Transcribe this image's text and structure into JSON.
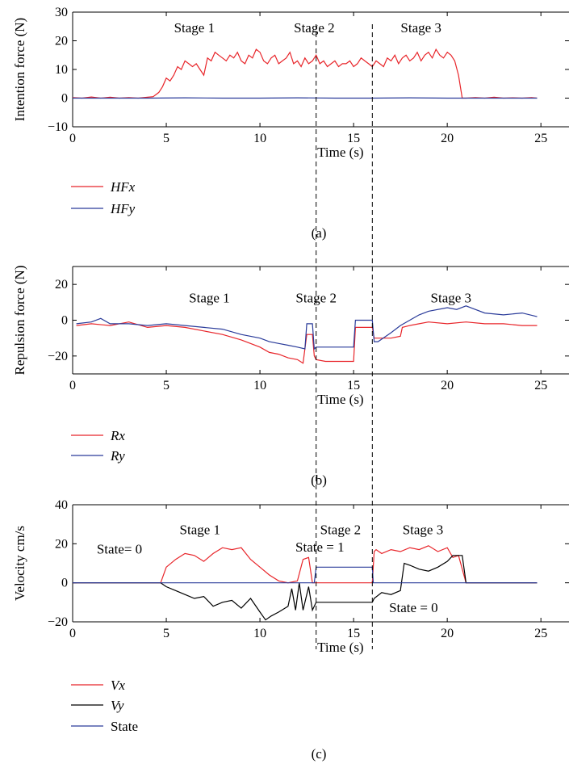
{
  "chart_data": [
    {
      "type": "line",
      "panel": "(a)",
      "xlabel": "Time (s)",
      "ylabel": "Intention force (N)",
      "xlim": [
        0,
        26.5
      ],
      "ylim": [
        -10,
        30
      ],
      "xticks": [
        0,
        5,
        10,
        15,
        20,
        25
      ],
      "yticks": [
        -10,
        0,
        10,
        20,
        30
      ],
      "annotations": [
        {
          "text": "Stage 1",
          "x": 6.5,
          "y": 23
        },
        {
          "text": "Stage 2",
          "x": 12.9,
          "y": 23
        },
        {
          "text": "Stage 3",
          "x": 18.6,
          "y": 23
        }
      ],
      "series": [
        {
          "name": "HFx",
          "color": "#e8252a",
          "x": [
            0,
            0.5,
            1,
            1.5,
            2,
            2.5,
            3,
            3.5,
            4,
            4.3,
            4.6,
            4.8,
            5,
            5.2,
            5.4,
            5.6,
            5.8,
            6,
            6.2,
            6.4,
            6.6,
            6.8,
            7,
            7.2,
            7.4,
            7.6,
            7.8,
            8,
            8.2,
            8.4,
            8.6,
            8.8,
            9,
            9.2,
            9.4,
            9.6,
            9.8,
            10,
            10.2,
            10.4,
            10.6,
            10.8,
            11,
            11.2,
            11.4,
            11.6,
            11.8,
            12,
            12.2,
            12.4,
            12.6,
            12.8,
            13,
            13.2,
            13.4,
            13.6,
            13.8,
            14,
            14.2,
            14.4,
            14.6,
            14.8,
            15,
            15.2,
            15.4,
            15.6,
            15.8,
            16,
            16.2,
            16.4,
            16.6,
            16.8,
            17,
            17.2,
            17.4,
            17.6,
            17.8,
            18,
            18.2,
            18.4,
            18.6,
            18.8,
            19,
            19.2,
            19.4,
            19.6,
            19.8,
            20,
            20.2,
            20.4,
            20.6,
            20.8,
            21,
            21.5,
            22,
            22.5,
            23,
            23.5,
            24,
            24.5,
            24.8
          ],
          "y": [
            0.2,
            0,
            0.4,
            0,
            0.3,
            0,
            0.2,
            0,
            0.3,
            0.5,
            2,
            4,
            7,
            6,
            8,
            11,
            10,
            13,
            12,
            11,
            12,
            10,
            8,
            14,
            13,
            16,
            15,
            14,
            13,
            15,
            14,
            16,
            13,
            12,
            15,
            14,
            17,
            16,
            13,
            12,
            14,
            15,
            12,
            13,
            14,
            16,
            12,
            13,
            11,
            14,
            12,
            13,
            15,
            12,
            13,
            11,
            12,
            13,
            11,
            12,
            12,
            13,
            11,
            12,
            14,
            13,
            12,
            11,
            13,
            12,
            11,
            14,
            13,
            15,
            12,
            14,
            15,
            13,
            14,
            16,
            13,
            15,
            16,
            14,
            17,
            15,
            14,
            16,
            15,
            13,
            8,
            0,
            0,
            0.2,
            0,
            0.3,
            0,
            0.1,
            0,
            0.2,
            0
          ]
        },
        {
          "name": "HFy",
          "color": "#2a3b9a",
          "x": [
            0,
            2,
            4,
            6,
            8,
            10,
            12,
            14,
            16,
            18,
            20,
            22,
            24,
            24.8
          ],
          "y": [
            0,
            0,
            0,
            0.1,
            0,
            0,
            0.1,
            0,
            0,
            0.1,
            0,
            0,
            0,
            0
          ]
        }
      ],
      "vlines": [
        13.0,
        16.0
      ]
    },
    {
      "type": "line",
      "panel": "(b)",
      "xlabel": "Time (s)",
      "ylabel": "Repulsion force (N)",
      "xlim": [
        0,
        26.5
      ],
      "ylim": [
        -30,
        30
      ],
      "xticks": [
        0,
        5,
        10,
        15,
        20,
        25
      ],
      "yticks": [
        -20,
        0,
        20
      ],
      "annotations": [
        {
          "text": "Stage 1",
          "x": 7.3,
          "y": 10
        },
        {
          "text": "Stage 2",
          "x": 13.0,
          "y": 10
        },
        {
          "text": "Stage 3",
          "x": 20.2,
          "y": 10
        }
      ],
      "series": [
        {
          "name": "Rx",
          "color": "#e8252a",
          "x": [
            0.2,
            1,
            2,
            3,
            4,
            5,
            6,
            7,
            8,
            9,
            10,
            10.5,
            11,
            11.5,
            12,
            12.3,
            12.5,
            12.6,
            12.8,
            12.9,
            13,
            13.5,
            14,
            15,
            15.1,
            15.2,
            16,
            16.1,
            16.3,
            17,
            17.5,
            17.6,
            18,
            18.5,
            19,
            20,
            21,
            22,
            23,
            24,
            24.8
          ],
          "y": [
            -3,
            -2,
            -3,
            -1,
            -4,
            -3,
            -4,
            -6,
            -8,
            -11,
            -15,
            -18,
            -19,
            -21,
            -22,
            -24,
            -8,
            -8,
            -8,
            -20,
            -22,
            -23,
            -23,
            -23,
            -4,
            -4,
            -4,
            -10,
            -10,
            -10,
            -9,
            -4,
            -3,
            -2,
            -1,
            -2,
            -1,
            -2,
            -2,
            -3,
            -3
          ]
        },
        {
          "name": "Ry",
          "color": "#2a3b9a",
          "x": [
            0.2,
            1,
            1.5,
            2,
            3,
            4,
            5,
            6,
            7,
            8,
            9,
            10,
            10.5,
            11,
            11.5,
            12,
            12.4,
            12.5,
            12.8,
            12.9,
            13,
            13.5,
            14,
            15,
            15.1,
            15.2,
            16,
            16.1,
            16.3,
            17,
            17.5,
            18,
            18.5,
            19,
            20,
            20.5,
            21,
            22,
            23,
            24,
            24.8
          ],
          "y": [
            -2,
            -1,
            1,
            -2,
            -2,
            -3,
            -2,
            -3,
            -4,
            -5,
            -8,
            -10,
            -12,
            -13,
            -14,
            -15,
            -16,
            -2,
            -2,
            -16,
            -15,
            -15,
            -15,
            -15,
            0,
            0,
            0,
            -12,
            -12,
            -7,
            -3,
            0,
            3,
            5,
            7,
            6,
            8,
            4,
            3,
            4,
            2
          ]
        }
      ],
      "vlines": [
        13.0,
        16.0
      ]
    },
    {
      "type": "line",
      "panel": "(c)",
      "xlabel": "Time (s)",
      "ylabel": "Velocity cm/s",
      "xlim": [
        0,
        26.5
      ],
      "ylim": [
        -20,
        40
      ],
      "xticks": [
        0,
        5,
        10,
        15,
        20,
        25
      ],
      "yticks": [
        -20,
        0,
        20,
        40
      ],
      "annotations": [
        {
          "text": "Stage 1",
          "x": 6.8,
          "y": 25
        },
        {
          "text": "Stage 2",
          "x": 14.3,
          "y": 25
        },
        {
          "text": "Stage 3",
          "x": 18.7,
          "y": 25
        },
        {
          "text": "State= 0",
          "x": 2.5,
          "y": 15
        },
        {
          "text": "State = 1",
          "x": 13.2,
          "y": 16
        },
        {
          "text": "State = 0",
          "x": 18.2,
          "y": -15
        }
      ],
      "series": [
        {
          "name": "Vx",
          "color": "#e8252a",
          "x": [
            0,
            4.7,
            5,
            5.5,
            6,
            6.5,
            7,
            7.5,
            8,
            8.5,
            9,
            9.5,
            10,
            10.5,
            11,
            11.5,
            12,
            12.3,
            12.6,
            12.8,
            13,
            14,
            15,
            16,
            16.1,
            16.2,
            16.5,
            17,
            17.5,
            18,
            18.5,
            19,
            19.5,
            20,
            20.3,
            20.6,
            21,
            21.5,
            22,
            23,
            24,
            24.8
          ],
          "y": [
            0,
            0,
            8,
            12,
            15,
            14,
            11,
            15,
            18,
            17,
            18,
            12,
            8,
            4,
            1,
            0,
            1,
            12,
            13,
            0,
            0,
            0,
            0,
            0,
            16,
            17,
            15,
            17,
            16,
            18,
            17,
            19,
            16,
            18,
            13,
            14,
            0,
            0,
            0,
            0,
            0,
            0
          ]
        },
        {
          "name": "Vy",
          "color": "#000000",
          "x": [
            0,
            4.7,
            5,
            5.5,
            6,
            6.5,
            7,
            7.5,
            8,
            8.5,
            9,
            9.5,
            10,
            10.3,
            10.6,
            11,
            11.5,
            11.7,
            11.9,
            12.1,
            12.3,
            12.6,
            12.8,
            13,
            14,
            15,
            16,
            16.1,
            16.5,
            17,
            17.5,
            17.7,
            18,
            18.5,
            19,
            19.5,
            20,
            20.3,
            20.6,
            20.8,
            21,
            21.5,
            22,
            23,
            24,
            24.8
          ],
          "y": [
            0,
            0,
            -2,
            -4,
            -6,
            -8,
            -7,
            -12,
            -10,
            -9,
            -13,
            -8,
            -15,
            -19,
            -17,
            -15,
            -12,
            -3,
            -14,
            0,
            -14,
            -2,
            -14,
            -10,
            -10,
            -10,
            -10,
            -8,
            -5,
            -6,
            -4,
            10,
            9,
            7,
            6,
            8,
            11,
            14,
            14,
            14,
            0,
            0,
            0,
            0,
            0,
            0
          ]
        },
        {
          "name": "State",
          "color": "#2a3b9a",
          "x": [
            0,
            12.9,
            13,
            16,
            16.05,
            24.8
          ],
          "y": [
            0,
            0,
            8,
            8,
            0,
            0
          ]
        }
      ],
      "vlines": [
        13.0,
        16.0
      ]
    }
  ],
  "legends": [
    [
      {
        "label": "HFx",
        "color": "#e8252a"
      },
      {
        "label": "HFy",
        "color": "#2a3b9a"
      }
    ],
    [
      {
        "label": "Rx",
        "color": "#e8252a"
      },
      {
        "label": "Ry",
        "color": "#2a3b9a"
      }
    ],
    [
      {
        "label": "Vx",
        "color": "#e8252a"
      },
      {
        "label": "Vy",
        "color": "#000000"
      },
      {
        "label": "State",
        "color": "#2a3b9a"
      }
    ]
  ],
  "captions": [
    "(a)",
    "(b)",
    "(c)"
  ]
}
